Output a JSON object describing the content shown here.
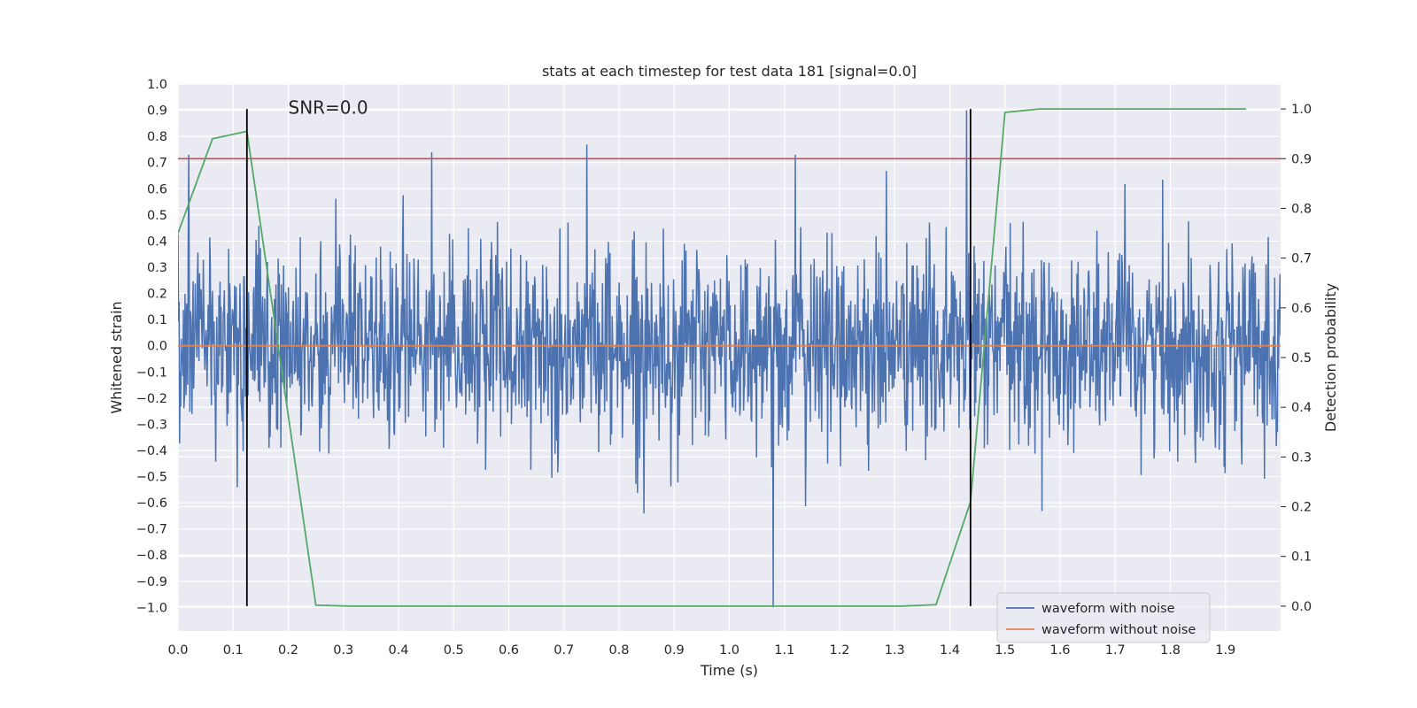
{
  "chart_data": {
    "type": "line",
    "title": "stats at each timestep for test data 181 [signal=0.0]",
    "xlabel": "Time (s)",
    "ylabel": "Whitened strain",
    "y2label": "Detection probability",
    "xlim": [
      0.0,
      2.0
    ],
    "ylim": [
      -1.09,
      1.0
    ],
    "y2lim": [
      -0.05,
      1.05
    ],
    "x_ticks": [
      "0.0",
      "0.1",
      "0.2",
      "0.3",
      "0.4",
      "0.5",
      "0.6",
      "0.7",
      "0.8",
      "0.9",
      "1.0",
      "1.1",
      "1.2",
      "1.3",
      "1.4",
      "1.5",
      "1.6",
      "1.7",
      "1.8",
      "1.9"
    ],
    "y_ticks": [
      "1.0",
      "0.9",
      "0.8",
      "0.7",
      "0.6",
      "0.5",
      "0.4",
      "0.3",
      "0.2",
      "0.1",
      "0.0",
      "−0.1",
      "−0.2",
      "−0.3",
      "−0.4",
      "−0.5",
      "−0.6",
      "−0.7",
      "−0.8",
      "−0.9",
      "−1.0"
    ],
    "y2_ticks": [
      "1.0",
      "0.9",
      "0.8",
      "0.7",
      "0.6",
      "0.5",
      "0.4",
      "0.3",
      "0.2",
      "0.1",
      "0.0"
    ],
    "annotation": "SNR=0.0",
    "grid": true,
    "legend_position": "lower-right",
    "series": [
      {
        "name": "waveform with noise",
        "axis": "left",
        "color": "#4c72b0",
        "description_note_free": true,
        "x_start": 0.0,
        "x_end": 2.0,
        "amplitude_std": 0.19,
        "extremes": [
          {
            "x": 1.43,
            "y": 0.9
          },
          {
            "x": 1.08,
            "y": -1.0
          },
          {
            "x": 0.46,
            "y": 0.74
          },
          {
            "x": 1.12,
            "y": 0.73
          },
          {
            "x": 0.02,
            "y": 0.73
          }
        ]
      },
      {
        "name": "waveform without noise",
        "axis": "left",
        "color": "#dd8452",
        "x": [
          0.0,
          2.0
        ],
        "y": [
          0.0,
          0.0
        ]
      },
      {
        "axis": "right",
        "color": "#55a868",
        "x": [
          0.0,
          0.0625,
          0.125,
          0.25,
          0.3125,
          0.375,
          0.4375,
          0.5,
          0.5625,
          0.625,
          0.6875,
          0.75,
          0.8125,
          0.875,
          0.9375,
          1.0,
          1.0625,
          1.125,
          1.1875,
          1.25,
          1.3125,
          1.375,
          1.4375,
          1.5,
          1.5625,
          1.625,
          1.6875,
          1.75,
          1.8125,
          1.875,
          1.9375
        ],
        "y": [
          0.75,
          0.94,
          0.955,
          0.002,
          0.0,
          0.0,
          0.0,
          0.0,
          0.0,
          0.0,
          0.0,
          0.0,
          0.0,
          0.0,
          0.0,
          0.0,
          0.0,
          0.0,
          0.0,
          0.0,
          0.0,
          0.003,
          0.21,
          0.993,
          1.0,
          1.0,
          1.0,
          1.0,
          1.0,
          1.0,
          1.0
        ]
      }
    ],
    "threshold_line": {
      "axis": "right",
      "y": 0.9,
      "color": "#c44e52"
    },
    "vertical_markers": [
      {
        "x": 0.125,
        "y2_range": [
          0.0,
          1.0
        ]
      },
      {
        "x": 1.4375,
        "y2_range": [
          0.0,
          1.0
        ]
      }
    ],
    "legend": [
      {
        "label": "waveform with noise",
        "color": "#4c72b0"
      },
      {
        "label": "waveform without noise",
        "color": "#dd8452"
      }
    ]
  }
}
